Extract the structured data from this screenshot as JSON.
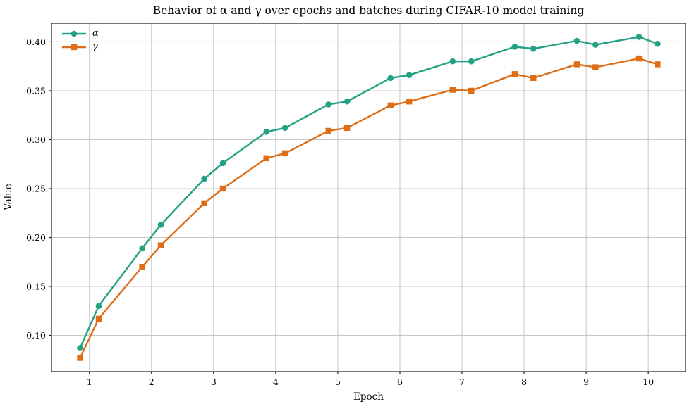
{
  "chart_data": {
    "type": "line",
    "title": "Behavior of α and γ over epochs and batches during CIFAR-10 model training",
    "xlabel": "Epoch",
    "ylabel": "Value",
    "x": [
      0.85,
      1.15,
      1.85,
      2.15,
      2.85,
      3.15,
      3.85,
      4.15,
      4.85,
      5.15,
      5.85,
      6.15,
      6.85,
      7.15,
      7.85,
      8.15,
      8.85,
      9.15,
      9.85,
      10.15
    ],
    "series": [
      {
        "id": "alpha",
        "name": "α",
        "color": "#23a184",
        "marker": "circle",
        "values": [
          0.087,
          0.13,
          0.189,
          0.213,
          0.26,
          0.276,
          0.308,
          0.312,
          0.336,
          0.339,
          0.363,
          0.366,
          0.38,
          0.38,
          0.395,
          0.393,
          0.401,
          0.397,
          0.405,
          0.398
        ]
      },
      {
        "id": "gamma",
        "name": "γ",
        "color": "#dd6d17",
        "marker": "square",
        "values": [
          0.077,
          0.117,
          0.17,
          0.192,
          0.235,
          0.25,
          0.281,
          0.286,
          0.309,
          0.312,
          0.335,
          0.339,
          0.351,
          0.35,
          0.367,
          0.363,
          0.377,
          0.374,
          0.383,
          0.377
        ]
      }
    ],
    "xlim": [
      0.39,
      10.6
    ],
    "ylim": [
      0.063,
      0.419
    ],
    "xticks": [
      1,
      2,
      3,
      4,
      5,
      6,
      7,
      8,
      9,
      10
    ],
    "xtick_labels": [
      "1",
      "2",
      "3",
      "4",
      "5",
      "6",
      "7",
      "8",
      "9",
      "10"
    ],
    "yticks": [
      0.1,
      0.15,
      0.2,
      0.25,
      0.3,
      0.35,
      0.4
    ],
    "ytick_labels": [
      "0.10",
      "0.15",
      "0.20",
      "0.25",
      "0.30",
      "0.35",
      "0.40"
    ],
    "grid": true,
    "grid_color": "#c6c6c6",
    "spine_color": "#1a1a1a",
    "legend_position": "upper left"
  }
}
